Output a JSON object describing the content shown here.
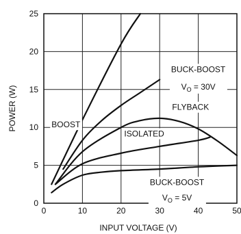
{
  "chart_data": {
    "type": "line",
    "title": "",
    "xlabel": "INPUT VOLTAGE (V)",
    "ylabel": "POWER (W)",
    "xlim": [
      0,
      50
    ],
    "ylim": [
      0,
      25
    ],
    "xticks": [
      "0",
      "10",
      "20",
      "30",
      "40",
      "50"
    ],
    "yticks": [
      "0",
      "5",
      "10",
      "15",
      "20",
      "25"
    ],
    "grid": true,
    "legend": "none",
    "series": [
      {
        "name": "BOOST",
        "x": [
          2,
          10,
          20,
          25
        ],
        "y": [
          2.5,
          11,
          21,
          25
        ]
      },
      {
        "name": "BUCK-BOOST VO = 30V",
        "x": [
          5,
          10,
          15,
          20,
          25,
          30
        ],
        "y": [
          4.5,
          8.3,
          10.9,
          12.9,
          14.6,
          16.3
        ]
      },
      {
        "name": "FLYBACK",
        "x": [
          3,
          10,
          20,
          25,
          30,
          35,
          40,
          45,
          50
        ],
        "y": [
          2.5,
          6.8,
          10.0,
          10.9,
          11.2,
          10.8,
          9.8,
          8.2,
          6.3
        ]
      },
      {
        "name": "ISOLATED",
        "x": [
          3,
          10,
          20,
          30,
          40,
          43
        ],
        "y": [
          2.5,
          5.2,
          6.6,
          7.5,
          8.3,
          8.7
        ]
      },
      {
        "name": "BUCK-BOOST VO = 5V",
        "x": [
          2,
          5,
          10,
          15,
          20,
          30,
          40,
          50
        ],
        "y": [
          1.4,
          2.5,
          3.7,
          4.1,
          4.3,
          4.5,
          4.8,
          5.0
        ]
      }
    ],
    "labels": {
      "boost": "BOOST",
      "bb30_line1": "BUCK-BOOST",
      "bb30_v": "V",
      "bb30_sub": "O",
      "bb30_val": " = 30V",
      "flyback": "FLYBACK",
      "isolated": "ISOLATED",
      "bb5_line1": "BUCK-BOOST",
      "bb5_v": "V",
      "bb5_sub": "O",
      "bb5_val": " = 5V"
    }
  }
}
